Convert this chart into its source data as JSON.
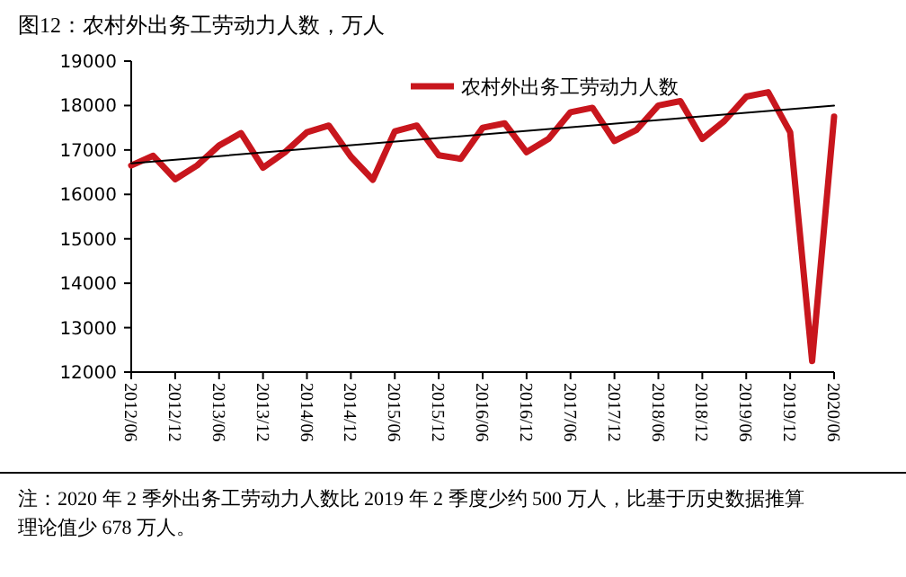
{
  "chart_data": {
    "type": "line",
    "title": "图12：农村外出务工劳动力人数，万人",
    "categories": [
      "2012/06",
      null,
      "2012/12",
      null,
      "2013/06",
      null,
      "2013/12",
      null,
      "2014/06",
      null,
      "2014/12",
      null,
      "2015/06",
      null,
      "2015/12",
      null,
      "2016/06",
      null,
      "2016/12",
      null,
      "2017/06",
      null,
      "2017/12",
      null,
      "2018/06",
      null,
      "2018/12",
      null,
      "2019/06",
      null,
      "2019/12",
      null,
      "2020/06"
    ],
    "series": [
      {
        "name": "农村外出务工劳动力人数",
        "color": "#c8161d",
        "values": [
          16650,
          16870,
          16340,
          16650,
          17100,
          17380,
          16600,
          16950,
          17400,
          17550,
          16850,
          16330,
          17420,
          17550,
          16880,
          16800,
          17500,
          17600,
          16950,
          17250,
          17850,
          17950,
          17200,
          17450,
          18000,
          18100,
          17250,
          17650,
          18200,
          18300,
          17400,
          12250,
          17750
        ]
      },
      {
        "type": "line",
        "color": "#000000",
        "x": [
          "2012/06",
          "2020/06"
        ],
        "values": [
          16700,
          18000
        ]
      }
    ],
    "ylim": [
      12000,
      19000
    ],
    "yticks": [
      12000,
      13000,
      14000,
      15000,
      16000,
      17000,
      18000,
      19000
    ],
    "grid": false,
    "legend": "top",
    "marker": "none",
    "line_style": "solid",
    "annotations": [
      "注：2020 年 2 季外出务工劳动力人数比 2019 年 2 季度少约 500 万人，比基于历史数据推算理论值少 678 万人。"
    ]
  }
}
